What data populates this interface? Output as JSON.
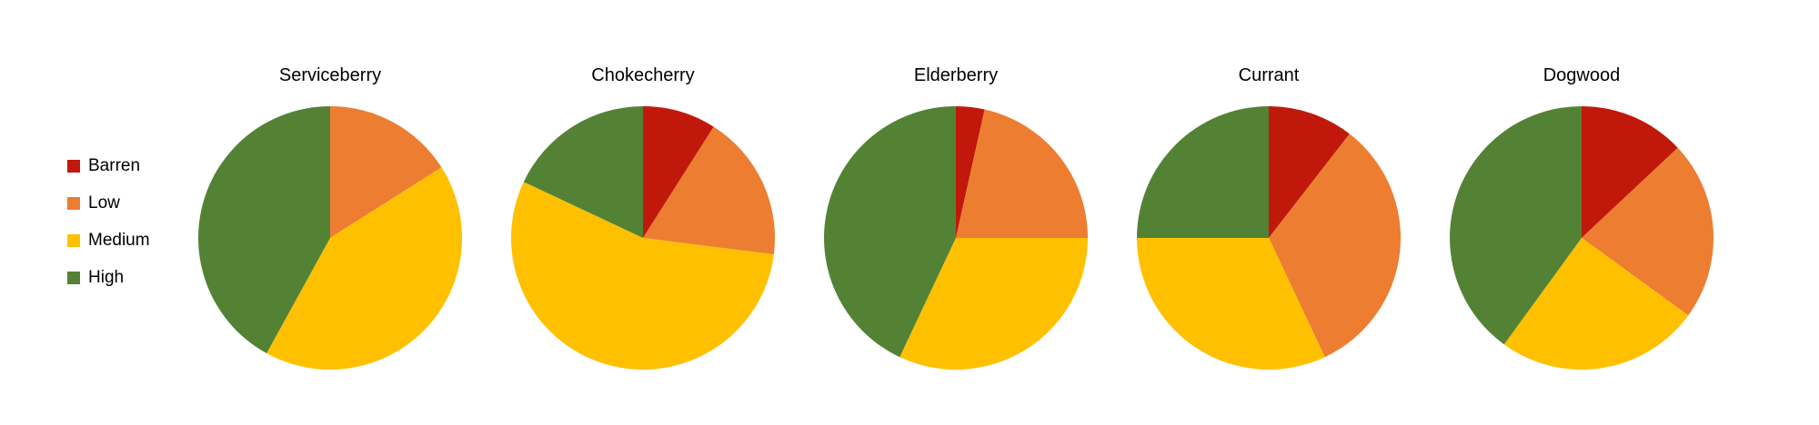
{
  "chart_data": {
    "type": "pie",
    "legend_position": "left",
    "categories": [
      {
        "name": "Barren",
        "color": "#C0190B"
      },
      {
        "name": "Low",
        "color": "#ED7D31"
      },
      {
        "name": "Medium",
        "color": "#FFC000"
      },
      {
        "name": "High",
        "color": "#548235"
      }
    ],
    "charts": [
      {
        "title": "Serviceberry",
        "values": [
          0,
          16,
          42,
          42
        ]
      },
      {
        "title": "Chokecherry",
        "values": [
          9,
          18,
          55,
          18
        ]
      },
      {
        "title": "Elderberry",
        "values": [
          3.5,
          21.5,
          32,
          43
        ]
      },
      {
        "title": "Currant",
        "values": [
          10.5,
          32.5,
          32,
          25
        ]
      },
      {
        "title": "Dogwood",
        "values": [
          13,
          22,
          25,
          40
        ]
      }
    ]
  }
}
